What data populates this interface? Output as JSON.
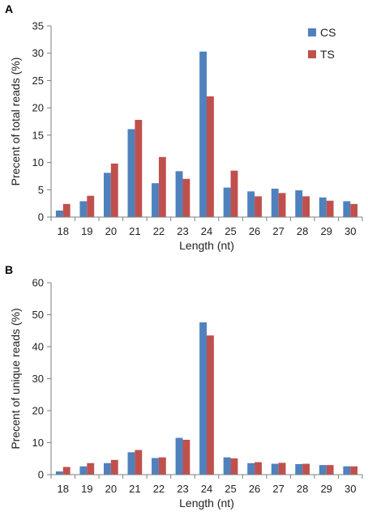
{
  "chart_data": [
    {
      "panel_label": "A",
      "type": "bar",
      "categories": [
        "18",
        "19",
        "20",
        "21",
        "22",
        "23",
        "24",
        "25",
        "26",
        "27",
        "28",
        "29",
        "30"
      ],
      "xlabel": "Length (nt)",
      "ylabel": "Precent of total reads (%)",
      "ylim": [
        0,
        35
      ],
      "yticks": [
        0,
        5,
        10,
        15,
        20,
        25,
        30,
        35
      ],
      "legend_placement": "top-right",
      "series": [
        {
          "name": "CS",
          "color": "#4f81bd",
          "values": [
            1.2,
            2.9,
            8.1,
            16.1,
            6.2,
            8.4,
            30.3,
            5.4,
            4.7,
            5.2,
            4.9,
            3.6,
            2.9
          ]
        },
        {
          "name": "TS",
          "color": "#c0504d",
          "values": [
            2.4,
            3.9,
            9.8,
            17.8,
            11.0,
            7.0,
            22.1,
            8.5,
            3.8,
            4.4,
            3.8,
            3.0,
            2.4
          ]
        }
      ]
    },
    {
      "panel_label": "B",
      "type": "bar",
      "categories": [
        "18",
        "19",
        "20",
        "21",
        "22",
        "23",
        "24",
        "25",
        "26",
        "27",
        "28",
        "29",
        "30"
      ],
      "xlabel": "Length (nt)",
      "ylabel": "Precent of unique reads (%)",
      "ylim": [
        0,
        60
      ],
      "yticks": [
        0,
        10,
        20,
        30,
        40,
        50,
        60
      ],
      "series": [
        {
          "name": "CS",
          "color": "#4f81bd",
          "values": [
            1.0,
            2.6,
            3.6,
            7.0,
            5.2,
            11.5,
            47.6,
            5.4,
            3.6,
            3.4,
            3.3,
            3.0,
            2.6
          ]
        },
        {
          "name": "TS",
          "color": "#c0504d",
          "values": [
            2.4,
            3.6,
            4.6,
            7.7,
            5.4,
            10.9,
            43.5,
            5.1,
            3.9,
            3.7,
            3.4,
            3.0,
            2.6
          ]
        }
      ]
    }
  ]
}
